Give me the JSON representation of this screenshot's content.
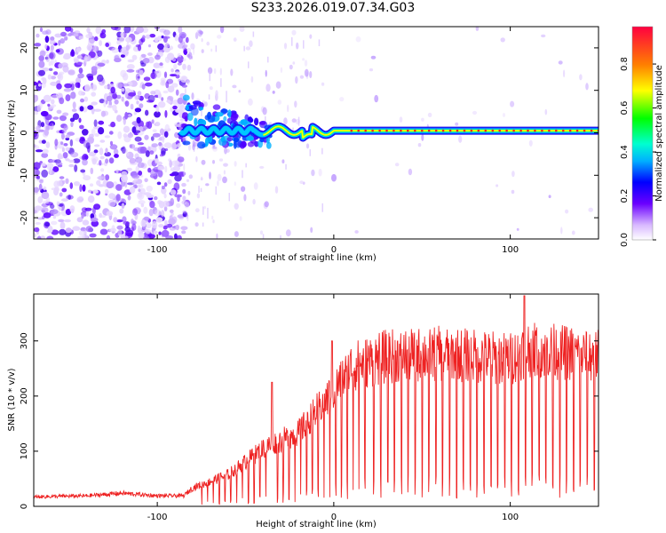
{
  "title": "S233.2026.019.07.34.G03",
  "chart_data": [
    {
      "type": "heatmap",
      "name": "spectrogram",
      "xlabel": "Height of straight line (km)",
      "ylabel": "Frequency (Hz)",
      "xlim": [
        -170,
        150
      ],
      "ylim": [
        -25,
        25
      ],
      "xticks": [
        -100,
        0,
        100
      ],
      "xtick_labels": [
        "-100",
        "0",
        "100"
      ],
      "yticks": [
        -20,
        -10,
        0,
        10,
        20
      ],
      "ytick_labels": [
        "-20",
        "-10",
        "0",
        "10",
        "20"
      ],
      "colorbar": {
        "label": "Normalized spectral amplitude",
        "ticks": [
          0.0,
          0.2,
          0.4,
          0.6,
          0.8
        ],
        "tick_labels": [
          "0.0",
          "0.2",
          "0.4",
          "0.6",
          "0.8"
        ],
        "range": [
          0,
          0.97
        ]
      },
      "features": {
        "noise_region_x": [
          -170,
          -85
        ],
        "signal_start_x": -87,
        "signal_frequency_hz": 0.5,
        "signal_peak_x_range": [
          10,
          150
        ]
      }
    },
    {
      "type": "line",
      "name": "snr",
      "xlabel": "Height of straight line (km)",
      "ylabel": "SNR (10 * v/v)",
      "xlim": [
        -170,
        150
      ],
      "ylim": [
        0,
        385
      ],
      "xticks": [
        -100,
        0,
        100
      ],
      "xtick_labels": [
        "-100",
        "0",
        "100"
      ],
      "yticks": [
        0,
        100,
        200,
        300
      ],
      "ytick_labels": [
        "0",
        "100",
        "200",
        "300"
      ],
      "color": "#ee2222",
      "envelope_x": [
        -170,
        -140,
        -120,
        -100,
        -85,
        -80,
        -60,
        -40,
        -20,
        0,
        10,
        20,
        30,
        60,
        100,
        110,
        150
      ],
      "envelope_y": [
        18,
        20,
        25,
        20,
        20,
        35,
        60,
        110,
        140,
        220,
        265,
        275,
        285,
        290,
        280,
        300,
        285
      ],
      "troughs_start_x": -75
    }
  ]
}
